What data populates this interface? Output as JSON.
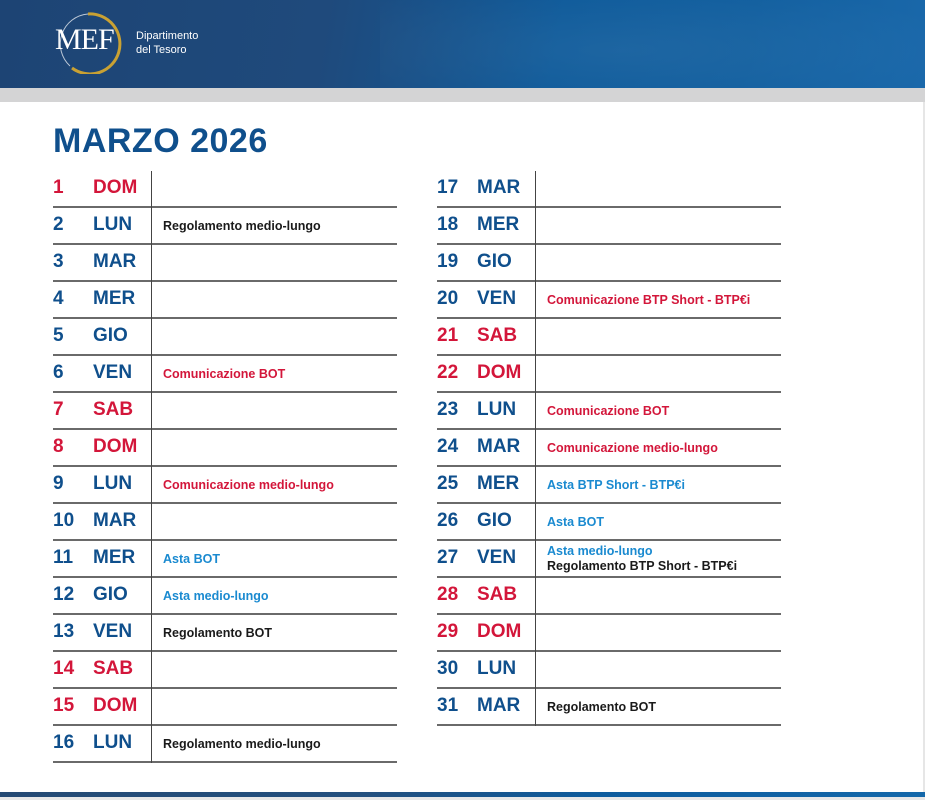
{
  "header": {
    "logo_text": "MEF",
    "department_line1": "Dipartimento",
    "department_line2": "del Tesoro"
  },
  "title": "MARZO 2026",
  "colors": {
    "weekday": "#0f4f8c",
    "weekend": "#d3163a",
    "comunicazione": "#d3163a",
    "asta": "#1a8ad0",
    "regolamento": "#1a1a1a"
  },
  "left_column": [
    {
      "num": "1",
      "day": "DOM",
      "weekend": true,
      "events": []
    },
    {
      "num": "2",
      "day": "LUN",
      "weekend": false,
      "events": [
        {
          "text": "Regolamento medio-lungo",
          "type": "reg"
        }
      ]
    },
    {
      "num": "3",
      "day": "MAR",
      "weekend": false,
      "events": []
    },
    {
      "num": "4",
      "day": "MER",
      "weekend": false,
      "events": []
    },
    {
      "num": "5",
      "day": "GIO",
      "weekend": false,
      "events": []
    },
    {
      "num": "6",
      "day": "VEN",
      "weekend": false,
      "events": [
        {
          "text": "Comunicazione BOT",
          "type": "com"
        }
      ]
    },
    {
      "num": "7",
      "day": "SAB",
      "weekend": true,
      "events": []
    },
    {
      "num": "8",
      "day": "DOM",
      "weekend": true,
      "events": []
    },
    {
      "num": "9",
      "day": "LUN",
      "weekend": false,
      "events": [
        {
          "text": "Comunicazione medio-lungo",
          "type": "com"
        }
      ]
    },
    {
      "num": "10",
      "day": "MAR",
      "weekend": false,
      "events": []
    },
    {
      "num": "11",
      "day": "MER",
      "weekend": false,
      "events": [
        {
          "text": "Asta BOT",
          "type": "asta"
        }
      ]
    },
    {
      "num": "12",
      "day": "GIO",
      "weekend": false,
      "events": [
        {
          "text": "Asta medio-lungo",
          "type": "asta"
        }
      ]
    },
    {
      "num": "13",
      "day": "VEN",
      "weekend": false,
      "events": [
        {
          "text": "Regolamento BOT",
          "type": "reg"
        }
      ]
    },
    {
      "num": "14",
      "day": "SAB",
      "weekend": true,
      "events": []
    },
    {
      "num": "15",
      "day": "DOM",
      "weekend": true,
      "events": []
    },
    {
      "num": "16",
      "day": "LUN",
      "weekend": false,
      "events": [
        {
          "text": "Regolamento medio-lungo",
          "type": "reg"
        }
      ]
    }
  ],
  "right_column": [
    {
      "num": "17",
      "day": "MAR",
      "weekend": false,
      "events": []
    },
    {
      "num": "18",
      "day": "MER",
      "weekend": false,
      "events": []
    },
    {
      "num": "19",
      "day": "GIO",
      "weekend": false,
      "events": []
    },
    {
      "num": "20",
      "day": "VEN",
      "weekend": false,
      "events": [
        {
          "text": "Comunicazione BTP Short - BTP€i",
          "type": "com"
        }
      ]
    },
    {
      "num": "21",
      "day": "SAB",
      "weekend": true,
      "events": []
    },
    {
      "num": "22",
      "day": "DOM",
      "weekend": true,
      "events": []
    },
    {
      "num": "23",
      "day": "LUN",
      "weekend": false,
      "events": [
        {
          "text": "Comunicazione BOT",
          "type": "com"
        }
      ]
    },
    {
      "num": "24",
      "day": "MAR",
      "weekend": false,
      "events": [
        {
          "text": "Comunicazione medio-lungo",
          "type": "com"
        }
      ]
    },
    {
      "num": "25",
      "day": "MER",
      "weekend": false,
      "events": [
        {
          "text": "Asta BTP Short - BTP€i",
          "type": "asta"
        }
      ]
    },
    {
      "num": "26",
      "day": "GIO",
      "weekend": false,
      "events": [
        {
          "text": "Asta BOT",
          "type": "asta"
        }
      ]
    },
    {
      "num": "27",
      "day": "VEN",
      "weekend": false,
      "events": [
        {
          "text": "Asta medio-lungo",
          "type": "asta"
        },
        {
          "text": "Regolamento BTP Short - BTP€i",
          "type": "reg"
        }
      ]
    },
    {
      "num": "28",
      "day": "SAB",
      "weekend": true,
      "events": []
    },
    {
      "num": "29",
      "day": "DOM",
      "weekend": true,
      "events": []
    },
    {
      "num": "30",
      "day": "LUN",
      "weekend": false,
      "events": []
    },
    {
      "num": "31",
      "day": "MAR",
      "weekend": false,
      "events": [
        {
          "text": "Regolamento BOT",
          "type": "reg"
        }
      ]
    }
  ]
}
